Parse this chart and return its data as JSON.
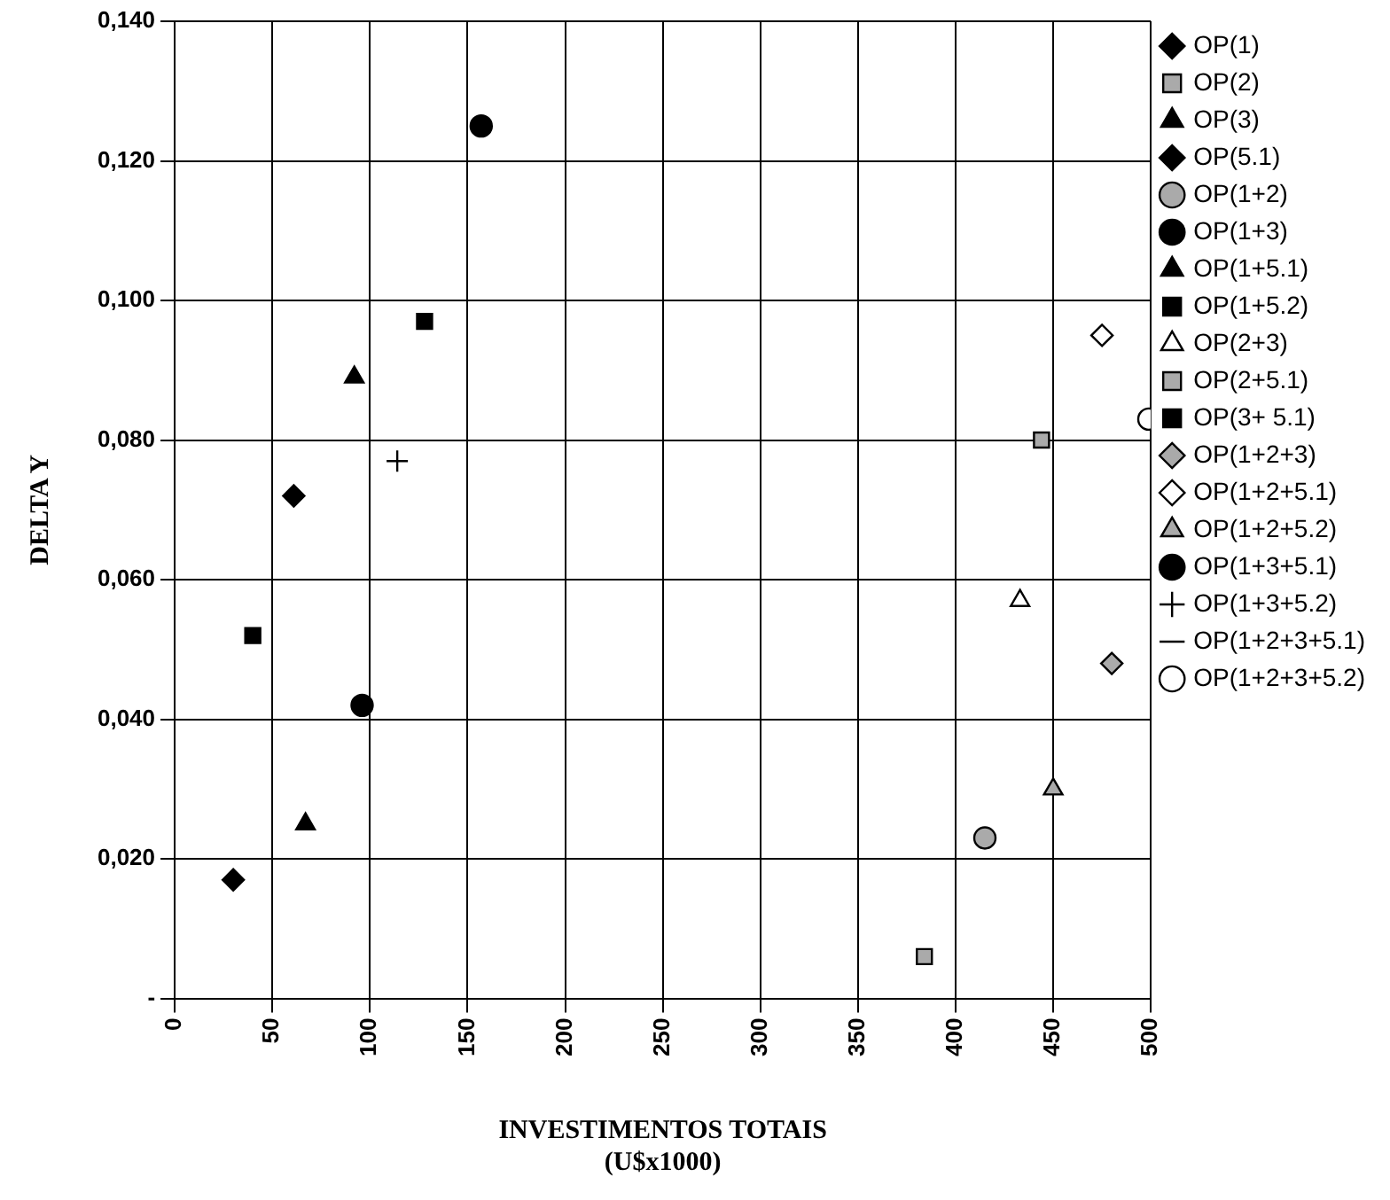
{
  "chart_data": {
    "type": "scatter",
    "xlabel": "INVESTIMENTOS TOTAIS\n(U$x1000)",
    "ylabel": "DELTA Y",
    "xlim": [
      0,
      500
    ],
    "xticks": [
      0,
      50,
      100,
      150,
      200,
      250,
      300,
      350,
      400,
      450,
      500
    ],
    "ylim": [
      0,
      0.14
    ],
    "yticks": [
      {
        "value": 0,
        "label": "-"
      },
      {
        "value": 0.02,
        "label": "0,020"
      },
      {
        "value": 0.04,
        "label": "0,040"
      },
      {
        "value": 0.06,
        "label": "0,060"
      },
      {
        "value": 0.08,
        "label": "0,080"
      },
      {
        "value": 0.1,
        "label": "0,100"
      },
      {
        "value": 0.12,
        "label": "0,120"
      },
      {
        "value": 0.14,
        "label": "0,140"
      }
    ],
    "grid": true,
    "legend": "right",
    "series": [
      {
        "name": "OP(1)",
        "color": "#000000",
        "marker": "diamond",
        "x": [
          30
        ],
        "values": [
          0.017
        ]
      },
      {
        "name": "OP(2)",
        "color": "#aaaaaa",
        "marker": "square",
        "x": [
          384
        ],
        "values": [
          0.006
        ]
      },
      {
        "name": "OP(3)",
        "color": "#000000",
        "marker": "triangle",
        "x": [
          67
        ],
        "values": [
          0.025
        ]
      },
      {
        "name": "OP(5.1)",
        "color": "#000000",
        "marker": "diamond",
        "x": [
          61
        ],
        "values": [
          0.072
        ]
      },
      {
        "name": "OP(1+2)",
        "color": "#aaaaaa",
        "marker": "circle",
        "x": [
          415
        ],
        "values": [
          0.023
        ]
      },
      {
        "name": "OP(1+3)",
        "color": "#000000",
        "marker": "circle",
        "x": [
          96
        ],
        "values": [
          0.042
        ]
      },
      {
        "name": "OP(1+5.1)",
        "color": "#000000",
        "marker": "triangle",
        "x": [
          92
        ],
        "values": [
          0.089
        ]
      },
      {
        "name": "OP(1+5.2)",
        "color": "#000000",
        "marker": "square",
        "x": [
          40
        ],
        "values": [
          0.052
        ]
      },
      {
        "name": "OP(2+3)",
        "color": "#ffffff",
        "marker": "triangle",
        "x": [
          433
        ],
        "values": [
          0.057
        ]
      },
      {
        "name": "OP(2+5.1)",
        "color": "#aaaaaa",
        "marker": "square",
        "x": [
          444
        ],
        "values": [
          0.08
        ]
      },
      {
        "name": "OP(3+ 5.1)",
        "color": "#000000",
        "marker": "square",
        "x": [
          128
        ],
        "values": [
          0.097
        ]
      },
      {
        "name": "OP(1+2+3)",
        "color": "#aaaaaa",
        "marker": "diamond",
        "x": [
          480
        ],
        "values": [
          0.048
        ]
      },
      {
        "name": "OP(1+2+5.1)",
        "color": "#ffffff",
        "marker": "diamond",
        "x": [
          475
        ],
        "values": [
          0.095
        ]
      },
      {
        "name": "OP(1+2+5.2)",
        "color": "#aaaaaa",
        "marker": "triangle",
        "x": [
          450
        ],
        "values": [
          0.03
        ]
      },
      {
        "name": "OP(1+3+5.1)",
        "color": "#000000",
        "marker": "circle",
        "x": [
          157
        ],
        "values": [
          0.125
        ]
      },
      {
        "name": "OP(1+3+5.2)",
        "color": "#000000",
        "marker": "cross",
        "x": [
          114
        ],
        "values": [
          0.077
        ]
      },
      {
        "name": "OP(1+2+3+5.1)",
        "color": "#000000",
        "marker": "none",
        "x": [
          null
        ],
        "values": [
          null
        ]
      },
      {
        "name": "OP(1+2+3+5.2)",
        "color": "#ffffff",
        "marker": "circle",
        "x": [
          499
        ],
        "values": [
          0.083
        ]
      }
    ]
  }
}
